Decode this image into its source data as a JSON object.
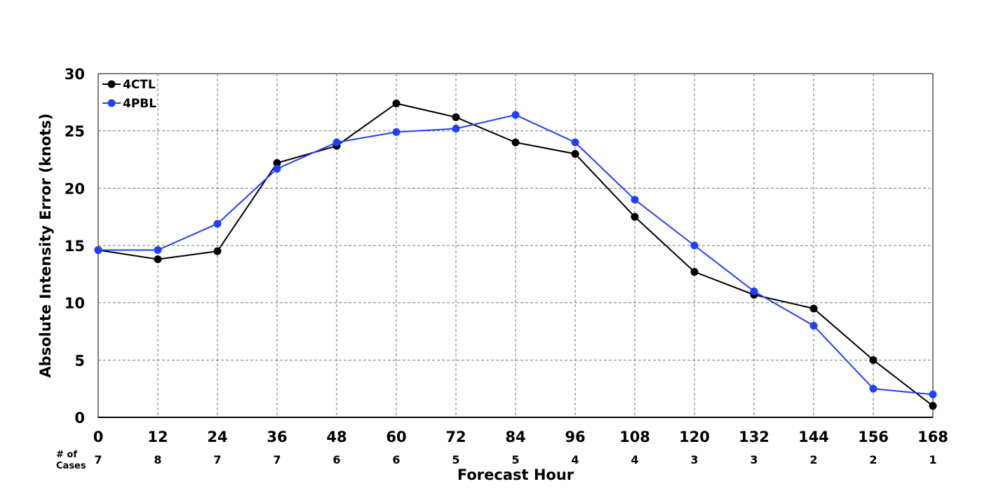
{
  "chart_data": {
    "type": "line",
    "xlabel": "Forecast Hour",
    "ylabel": "Absolute Intensity Error (knots)",
    "x": [
      0,
      12,
      24,
      36,
      48,
      60,
      72,
      84,
      96,
      108,
      120,
      132,
      144,
      156,
      168
    ],
    "xlim": [
      0,
      168
    ],
    "ylim": [
      0,
      30
    ],
    "yticks": [
      0,
      5,
      10,
      15,
      20,
      25,
      30
    ],
    "grid": true,
    "legend_position": "top-left",
    "cases_label_line1": "# of",
    "cases_label_line2": "Cases",
    "cases": [
      7,
      8,
      7,
      7,
      6,
      6,
      5,
      5,
      4,
      4,
      3,
      3,
      2,
      2,
      1
    ],
    "series": [
      {
        "name": "4CTL",
        "color": "#000000",
        "values": [
          14.6,
          13.8,
          14.5,
          22.2,
          23.7,
          27.4,
          26.2,
          24.0,
          23.0,
          17.5,
          12.7,
          10.7,
          9.5,
          5.0,
          1.0
        ]
      },
      {
        "name": "4PBL",
        "color": "#1f3fff",
        "values": [
          14.6,
          14.6,
          16.9,
          21.7,
          24.0,
          24.9,
          25.2,
          26.4,
          24.0,
          19.0,
          15.0,
          11.0,
          8.0,
          2.5,
          2.0
        ]
      }
    ]
  }
}
